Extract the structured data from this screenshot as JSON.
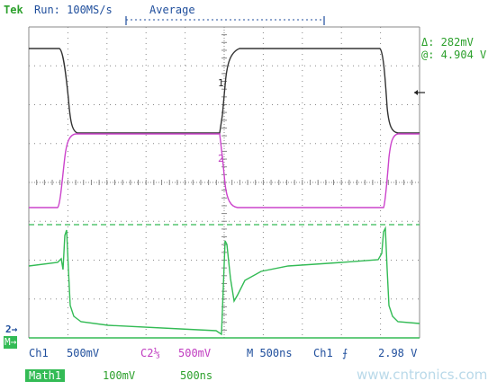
{
  "header": {
    "brand": "Tek",
    "run_status": "Run: 100MS/s",
    "acq_mode": "Average"
  },
  "cursor_readout": {
    "delta": "Δ: 282mV",
    "at": "@: 4.904 V"
  },
  "markers": {
    "ch1_trace": "1",
    "ch2_trace": "2",
    "left_ref_top": "2→",
    "left_ref_bottom": "M→"
  },
  "status_bar": {
    "ch1": "Ch1",
    "ch1_scale": "500mV",
    "ch2": "C2⅓",
    "ch2_scale": "500mV",
    "timebase": "M 500ns",
    "trigger_source": "Ch1",
    "trigger_slope": "⨍",
    "trigger_level": "2.98 V",
    "math": "Math1",
    "math_scale": "100mV",
    "math_time": "500ns"
  },
  "watermark": "www.cntronics.com",
  "colors": {
    "ch1": "#333333",
    "ch2": "#cc44cc",
    "math": "#33bb55",
    "grid": "#888888",
    "text_green": "#2ca02c",
    "text_blue": "#1f4e9c",
    "text_magenta": "#c03cc0"
  }
}
